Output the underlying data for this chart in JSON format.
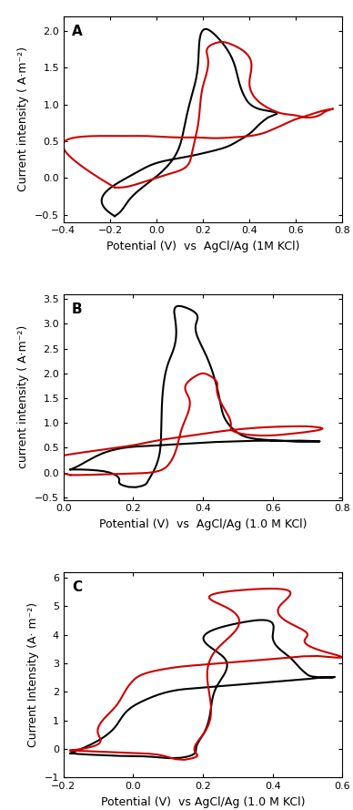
{
  "panels": [
    {
      "label": "A",
      "xlabel": "Potential (V)  vs  AgCl/Ag (1M KCl)",
      "ylabel": "Current intensity ( A·m⁻²)",
      "xlim": [
        -0.4,
        0.8
      ],
      "ylim": [
        -0.6,
        2.2
      ],
      "xticks": [
        -0.4,
        -0.2,
        0.0,
        0.2,
        0.4,
        0.6,
        0.8
      ],
      "yticks": [
        -0.5,
        0.0,
        0.5,
        1.0,
        1.5,
        2.0
      ],
      "black_x": [
        -0.18,
        -0.17,
        -0.13,
        -0.08,
        0.0,
        0.08,
        0.12,
        0.15,
        0.18,
        0.22,
        0.28,
        0.38,
        0.45,
        0.5,
        0.52,
        0.5,
        0.47,
        0.44,
        0.4,
        0.35,
        0.3,
        0.22,
        0.15,
        0.08,
        0.02,
        -0.02,
        -0.06,
        -0.1,
        -0.14,
        -0.18
      ],
      "black_y": [
        -0.52,
        -0.5,
        -0.35,
        -0.18,
        0.02,
        0.3,
        0.7,
        1.1,
        1.6,
        2.02,
        1.85,
        1.1,
        0.93,
        0.9,
        0.88,
        0.85,
        0.8,
        0.72,
        0.6,
        0.5,
        0.42,
        0.35,
        0.3,
        0.26,
        0.22,
        0.18,
        0.12,
        0.05,
        -0.02,
        -0.52
      ],
      "red_x": [
        -0.18,
        -0.15,
        -0.1,
        -0.05,
        0.0,
        0.05,
        0.1,
        0.15,
        0.18,
        0.2,
        0.22,
        0.25,
        0.28,
        0.32,
        0.4,
        0.5,
        0.55,
        0.6,
        0.65,
        0.7,
        0.74,
        0.76,
        0.74,
        0.7,
        0.65,
        0.6,
        0.55,
        0.5,
        0.45,
        0.4,
        0.32,
        0.25,
        0.18,
        0.1,
        0.02,
        -0.05,
        -0.1,
        -0.14,
        -0.18
      ],
      "red_y": [
        -0.13,
        -0.13,
        -0.1,
        -0.05,
        0.0,
        0.05,
        0.1,
        0.3,
        0.75,
        1.25,
        1.65,
        1.83,
        1.85,
        1.82,
        1.3,
        0.92,
        0.87,
        0.85,
        0.82,
        0.85,
        0.92,
        0.94,
        0.93,
        0.9,
        0.85,
        0.8,
        0.73,
        0.66,
        0.6,
        0.57,
        0.55,
        0.54,
        0.55,
        0.55,
        0.56,
        0.57,
        0.57,
        0.57,
        -0.13
      ]
    },
    {
      "label": "B",
      "xlabel": "Potential (V)  vs  AgCl/Ag (1.0 M KCl)",
      "ylabel": "current intensity ( A·m⁻²)",
      "xlim": [
        0.0,
        0.8
      ],
      "ylim": [
        -0.55,
        3.6
      ],
      "xticks": [
        0.0,
        0.2,
        0.4,
        0.6,
        0.8
      ],
      "yticks": [
        -0.5,
        0.0,
        0.5,
        1.0,
        1.5,
        2.0,
        2.5,
        3.0,
        3.5
      ],
      "black_x": [
        0.02,
        0.04,
        0.06,
        0.08,
        0.1,
        0.12,
        0.14,
        0.16,
        0.18,
        0.2,
        0.22,
        0.24,
        0.26,
        0.28,
        0.3,
        0.32,
        0.34,
        0.36,
        0.38,
        0.4,
        0.45,
        0.5,
        0.55,
        0.6,
        0.65,
        0.7,
        0.74,
        0.72,
        0.7,
        0.65,
        0.6,
        0.55,
        0.5,
        0.45,
        0.4,
        0.35,
        0.3,
        0.25,
        0.2,
        0.14,
        0.1,
        0.06,
        0.02
      ],
      "black_y": [
        0.06,
        0.06,
        0.06,
        0.05,
        0.04,
        0.02,
        -0.02,
        -0.15,
        -0.28,
        -0.3,
        -0.28,
        -0.2,
        0.05,
        0.8,
        2.2,
        3.1,
        3.35,
        3.3,
        3.0,
        2.5,
        1.4,
        0.8,
        0.68,
        0.65,
        0.63,
        0.62,
        0.63,
        0.63,
        0.64,
        0.64,
        0.64,
        0.64,
        0.63,
        0.62,
        0.6,
        0.58,
        0.56,
        0.54,
        0.52,
        0.45,
        0.35,
        0.2,
        0.06
      ],
      "red_x": [
        0.02,
        0.05,
        0.1,
        0.15,
        0.2,
        0.25,
        0.28,
        0.3,
        0.32,
        0.34,
        0.36,
        0.38,
        0.4,
        0.42,
        0.44,
        0.46,
        0.48,
        0.5,
        0.55,
        0.6,
        0.65,
        0.7,
        0.74,
        0.72,
        0.7,
        0.65,
        0.6,
        0.55,
        0.5,
        0.45,
        0.4,
        0.35,
        0.3,
        0.25,
        0.2,
        0.15,
        0.1,
        0.05,
        0.02
      ],
      "red_y": [
        -0.05,
        -0.05,
        -0.04,
        -0.03,
        -0.02,
        0.0,
        0.05,
        0.15,
        0.4,
        0.9,
        1.5,
        1.95,
        2.0,
        1.95,
        1.7,
        1.3,
        0.95,
        0.8,
        0.75,
        0.75,
        0.78,
        0.82,
        0.9,
        0.92,
        0.93,
        0.93,
        0.92,
        0.9,
        0.87,
        0.83,
        0.78,
        0.73,
        0.68,
        0.62,
        0.55,
        0.5,
        0.45,
        0.4,
        -0.05
      ]
    },
    {
      "label": "C",
      "xlabel": "Potential (V)  vs AgCl/Ag (1.0 M KCl)",
      "ylabel": "Current Intensity (A· m⁻²)",
      "xlim": [
        -0.2,
        0.6
      ],
      "ylim": [
        -1.0,
        6.2
      ],
      "xticks": [
        -0.2,
        0.0,
        0.2,
        0.4,
        0.6
      ],
      "yticks": [
        -1.0,
        0.0,
        1.0,
        2.0,
        3.0,
        4.0,
        5.0,
        6.0
      ],
      "black_x": [
        -0.18,
        -0.16,
        -0.12,
        -0.08,
        -0.04,
        0.0,
        0.04,
        0.06,
        0.08,
        0.1,
        0.12,
        0.14,
        0.16,
        0.18,
        0.2,
        0.22,
        0.24,
        0.26,
        0.3,
        0.35,
        0.4,
        0.45,
        0.5,
        0.55,
        0.58,
        0.58,
        0.56,
        0.54,
        0.5,
        0.45,
        0.4,
        0.35,
        0.3,
        0.25,
        0.2,
        0.15,
        0.1,
        0.05,
        0.0,
        -0.05,
        -0.1,
        -0.15,
        -0.18
      ],
      "black_y": [
        -0.15,
        -0.17,
        -0.2,
        -0.22,
        -0.24,
        -0.25,
        -0.26,
        -0.28,
        -0.3,
        -0.32,
        -0.32,
        -0.3,
        -0.25,
        0.0,
        0.5,
        1.2,
        2.2,
        3.2,
        4.4,
        4.5,
        4.0,
        3.2,
        2.6,
        2.5,
        2.5,
        2.52,
        2.52,
        2.5,
        2.45,
        2.4,
        2.35,
        2.3,
        2.25,
        2.2,
        2.15,
        2.1,
        2.0,
        1.8,
        1.5,
        0.8,
        0.3,
        0.0,
        -0.15
      ],
      "red_x": [
        -0.18,
        -0.16,
        -0.12,
        -0.08,
        -0.04,
        0.0,
        0.04,
        0.06,
        0.08,
        0.1,
        0.12,
        0.14,
        0.16,
        0.18,
        0.2,
        0.22,
        0.24,
        0.26,
        0.3,
        0.36,
        0.42,
        0.5,
        0.55,
        0.58,
        0.56,
        0.54,
        0.5,
        0.45,
        0.4,
        0.35,
        0.3,
        0.25,
        0.2,
        0.15,
        0.1,
        0.05,
        0.0,
        -0.05,
        -0.1,
        -0.15,
        -0.18
      ],
      "red_y": [
        -0.05,
        -0.06,
        -0.08,
        -0.1,
        -0.12,
        -0.14,
        -0.16,
        -0.18,
        -0.22,
        -0.28,
        -0.35,
        -0.38,
        -0.35,
        -0.15,
        0.5,
        1.8,
        3.5,
        5.0,
        5.55,
        5.6,
        5.0,
        4.0,
        3.4,
        3.2,
        3.22,
        3.25,
        3.25,
        3.2,
        3.15,
        3.1,
        3.05,
        3.0,
        2.95,
        2.9,
        2.82,
        2.7,
        2.4,
        1.5,
        0.5,
        0.0,
        -0.05
      ]
    }
  ],
  "line_color_black": "#000000",
  "line_color_red": "#cc0000",
  "line_width": 1.5,
  "background_color": "#ffffff",
  "font_size_label": 9,
  "font_size_tick": 8,
  "font_size_panel_label": 11
}
